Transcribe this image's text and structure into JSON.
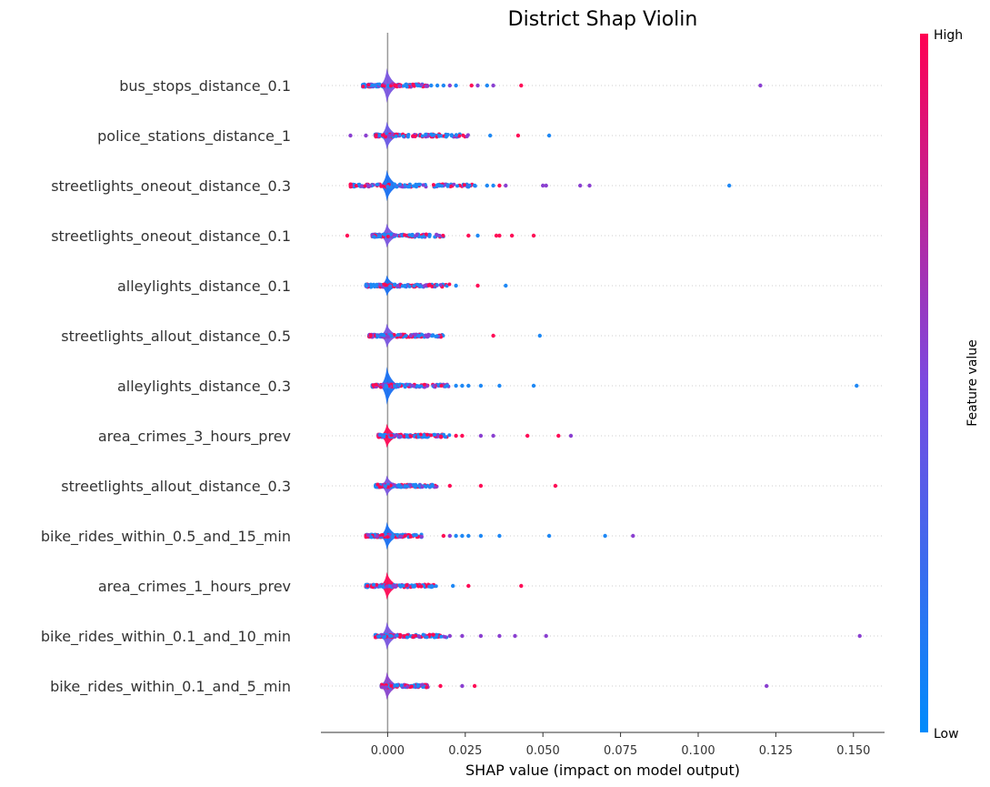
{
  "chart_data": {
    "type": "violin",
    "title": "District Shap Violin",
    "xlabel": "SHAP value (impact on model output)",
    "xlim": [
      -0.0215,
      0.16
    ],
    "xticks": [
      0.0,
      0.025,
      0.05,
      0.075,
      0.1,
      0.125,
      0.15
    ],
    "xtick_labels": [
      "0.000",
      "0.025",
      "0.050",
      "0.075",
      "0.100",
      "0.125",
      "0.150"
    ],
    "colorbar": {
      "label": "Feature value",
      "high_label": "High",
      "low_label": "Low",
      "low_color": "#008bfb",
      "mid_color": "#7b49e0",
      "high_color": "#ff0052"
    },
    "features": [
      {
        "name": "bus_stops_distance_0.1",
        "violin_color": "#7a55e0",
        "violin_width": 10,
        "core_range": [
          -0.008,
          0.013
        ],
        "outliers": [
          [
            0.014,
            "blue"
          ],
          [
            0.016,
            "blue"
          ],
          [
            0.018,
            "blue"
          ],
          [
            0.02,
            "purple"
          ],
          [
            0.022,
            "blue"
          ],
          [
            0.027,
            "red"
          ],
          [
            0.029,
            "purple"
          ],
          [
            0.032,
            "blue"
          ],
          [
            0.034,
            "purple"
          ],
          [
            0.043,
            "red"
          ],
          [
            0.12,
            "purple"
          ]
        ]
      },
      {
        "name": "police_stations_distance_1",
        "violin_color": "#6a58e6",
        "violin_width": 8,
        "core_range": [
          -0.004,
          0.026
        ],
        "outliers": [
          [
            -0.012,
            "purple"
          ],
          [
            -0.007,
            "purple"
          ],
          [
            0.033,
            "blue"
          ],
          [
            0.042,
            "red"
          ],
          [
            0.052,
            "blue"
          ]
        ]
      },
      {
        "name": "streetlights_oneout_distance_0.3",
        "violin_color": "#1870f2",
        "violin_width": 9,
        "core_range": [
          -0.012,
          0.03
        ],
        "outliers": [
          [
            0.032,
            "blue"
          ],
          [
            0.034,
            "blue"
          ],
          [
            0.036,
            "red"
          ],
          [
            0.038,
            "purple"
          ],
          [
            0.05,
            "purple"
          ],
          [
            0.051,
            "purple"
          ],
          [
            0.062,
            "purple"
          ],
          [
            0.065,
            "purple"
          ],
          [
            0.11,
            "blue"
          ]
        ]
      },
      {
        "name": "streetlights_oneout_distance_0.1",
        "violin_color": "#7a55e0",
        "violin_width": 7,
        "core_range": [
          -0.005,
          0.018
        ],
        "outliers": [
          [
            -0.013,
            "red"
          ],
          [
            0.026,
            "red"
          ],
          [
            0.029,
            "blue"
          ],
          [
            0.035,
            "red"
          ],
          [
            0.036,
            "red"
          ],
          [
            0.04,
            "red"
          ],
          [
            0.047,
            "red"
          ]
        ]
      },
      {
        "name": "alleylights_distance_0.1",
        "violin_color": "#1870f2",
        "violin_width": 6,
        "core_range": [
          -0.007,
          0.02
        ],
        "outliers": [
          [
            0.022,
            "blue"
          ],
          [
            0.029,
            "red"
          ],
          [
            0.038,
            "blue"
          ]
        ]
      },
      {
        "name": "streetlights_allout_distance_0.5",
        "violin_color": "#7a55e0",
        "violin_width": 7,
        "core_range": [
          -0.006,
          0.018
        ],
        "outliers": [
          [
            0.034,
            "red"
          ],
          [
            0.049,
            "blue"
          ]
        ]
      },
      {
        "name": "alleylights_distance_0.3",
        "violin_color": "#1870f2",
        "violin_width": 11,
        "core_range": [
          -0.005,
          0.02
        ],
        "outliers": [
          [
            0.022,
            "blue"
          ],
          [
            0.024,
            "blue"
          ],
          [
            0.026,
            "blue"
          ],
          [
            0.03,
            "blue"
          ],
          [
            0.036,
            "blue"
          ],
          [
            0.047,
            "blue"
          ],
          [
            0.151,
            "blue"
          ]
        ]
      },
      {
        "name": "area_crimes_3_hours_prev",
        "violin_color": "#ff0a56",
        "violin_width": 7,
        "core_range": [
          -0.003,
          0.02
        ],
        "outliers": [
          [
            0.022,
            "red"
          ],
          [
            0.024,
            "red"
          ],
          [
            0.03,
            "purple"
          ],
          [
            0.034,
            "purple"
          ],
          [
            0.045,
            "red"
          ],
          [
            0.055,
            "red"
          ],
          [
            0.059,
            "purple"
          ]
        ]
      },
      {
        "name": "streetlights_allout_distance_0.3",
        "violin_color": "#7a55e0",
        "violin_width": 6,
        "core_range": [
          -0.004,
          0.016
        ],
        "outliers": [
          [
            0.02,
            "red"
          ],
          [
            0.03,
            "red"
          ],
          [
            0.054,
            "red"
          ]
        ]
      },
      {
        "name": "bike_rides_within_0.5_and_15_min",
        "violin_color": "#1870f2",
        "violin_width": 8,
        "core_range": [
          -0.007,
          0.011
        ],
        "outliers": [
          [
            0.018,
            "red"
          ],
          [
            0.02,
            "purple"
          ],
          [
            0.022,
            "blue"
          ],
          [
            0.024,
            "blue"
          ],
          [
            0.026,
            "blue"
          ],
          [
            0.03,
            "blue"
          ],
          [
            0.036,
            "blue"
          ],
          [
            0.052,
            "blue"
          ],
          [
            0.07,
            "blue"
          ],
          [
            0.079,
            "purple"
          ]
        ]
      },
      {
        "name": "area_crimes_1_hours_prev",
        "violin_color": "#ff0a56",
        "violin_width": 8,
        "core_range": [
          -0.007,
          0.016
        ],
        "outliers": [
          [
            0.021,
            "blue"
          ],
          [
            0.026,
            "red"
          ],
          [
            0.043,
            "red"
          ]
        ]
      },
      {
        "name": "bike_rides_within_0.1_and_10_min",
        "violin_color": "#7a55e0",
        "violin_width": 8,
        "core_range": [
          -0.004,
          0.019
        ],
        "outliers": [
          [
            0.02,
            "purple"
          ],
          [
            0.024,
            "purple"
          ],
          [
            0.03,
            "purple"
          ],
          [
            0.036,
            "purple"
          ],
          [
            0.041,
            "purple"
          ],
          [
            0.051,
            "purple"
          ],
          [
            0.152,
            "purple"
          ]
        ]
      },
      {
        "name": "bike_rides_within_0.1_and_5_min",
        "violin_color": "#8a45cf",
        "violin_width": 8,
        "core_range": [
          -0.002,
          0.013
        ],
        "outliers": [
          [
            0.017,
            "red"
          ],
          [
            0.024,
            "purple"
          ],
          [
            0.028,
            "red"
          ],
          [
            0.122,
            "purple"
          ]
        ]
      }
    ]
  }
}
